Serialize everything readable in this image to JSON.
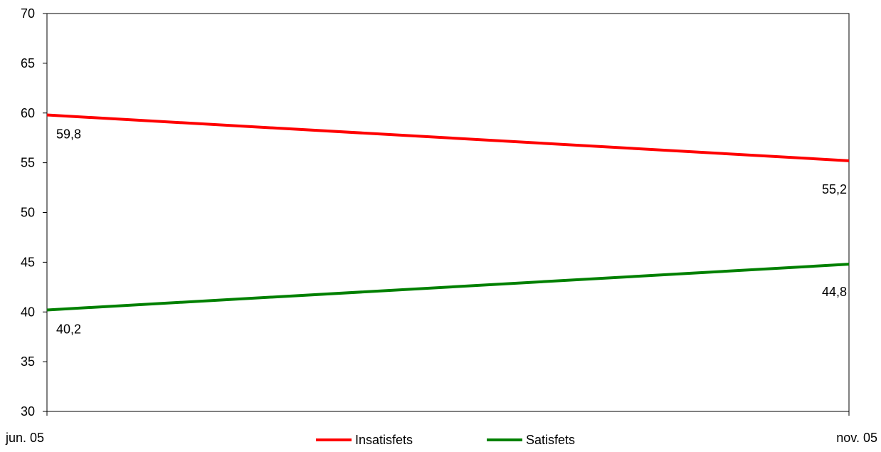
{
  "chart_data": {
    "type": "line",
    "title": "",
    "xlabel": "",
    "ylabel": "",
    "x": [
      "jun. 05",
      "nov. 05"
    ],
    "ylim": [
      30,
      70
    ],
    "yticks": [
      30,
      35,
      40,
      45,
      50,
      55,
      60,
      65,
      70
    ],
    "grid": false,
    "legend_position": "bottom",
    "series": [
      {
        "name": "Insatisfets",
        "values": [
          59.8,
          55.2
        ],
        "labels": [
          "59,8",
          "55,2"
        ],
        "color": "#ff0000"
      },
      {
        "name": "Satisfets",
        "values": [
          40.2,
          44.8
        ],
        "labels": [
          "40,2",
          "44,8"
        ],
        "color": "#008000"
      }
    ]
  }
}
